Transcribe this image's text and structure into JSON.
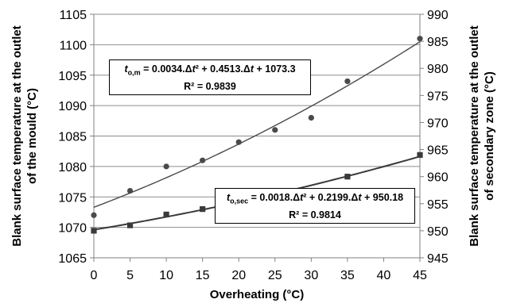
{
  "chart_data": {
    "type": "scatter",
    "xlabel": "Overheating (°C)",
    "ylabel_left": "Blank surface temperature at the outlet of the mould (°C)",
    "ylabel_left_lines": [
      "Blank surface temperature at the outlet",
      "of the mould (°C)"
    ],
    "ylabel_right": "Blank surface temperature at the outlet of secondary zone (°C)",
    "ylabel_right_lines": [
      "Blank surface temperature at the outlet",
      "of secondary zone (°C)"
    ],
    "xlim": [
      0,
      45
    ],
    "ylim_left": [
      1065,
      1105
    ],
    "ylim_right": [
      945,
      990
    ],
    "x_ticks": [
      "0",
      "5",
      "10",
      "15",
      "20",
      "25",
      "30",
      "35",
      "40",
      "45"
    ],
    "y_left_ticks": [
      "1065",
      "1070",
      "1075",
      "1080",
      "1085",
      "1090",
      "1095",
      "1100",
      "1105"
    ],
    "y_right_ticks": [
      "945",
      "950",
      "955",
      "960",
      "965",
      "970",
      "975",
      "980",
      "985",
      "990"
    ],
    "grid": "horizontal",
    "series": [
      {
        "axis": "left",
        "marker": "circle",
        "x": [
          0,
          5,
          10,
          15,
          20,
          25,
          30,
          35,
          45
        ],
        "y": [
          1072,
          1076,
          1080,
          1081,
          1084,
          1086,
          1088,
          1094,
          1101
        ],
        "trend": {
          "a": 0.0034,
          "b": 0.4513,
          "c": 1073.3
        },
        "equation": {
          "lhs": "t",
          "lhs_sub": "o,m",
          "rhs_parts": [
            " = 0.0034.Δ",
            "t",
            "² + 0.4513.Δ",
            "t",
            " + 1073.3"
          ],
          "r2": "R² = 0.9839"
        }
      },
      {
        "axis": "right",
        "marker": "square",
        "x": [
          0,
          5,
          10,
          15,
          20,
          25,
          30,
          35,
          45
        ],
        "y": [
          950,
          951,
          953,
          954,
          955.5,
          956.5,
          956.5,
          960,
          964
        ],
        "trend": {
          "a": 0.0018,
          "b": 0.2199,
          "c": 950.18
        },
        "equation": {
          "lhs": "t",
          "lhs_sub": "o,sec",
          "rhs_parts": [
            " = 0.0018.Δ",
            "t",
            "² + 0.2199.Δ",
            "t",
            " + 950.18"
          ],
          "r2": "R² = 0.9814"
        }
      }
    ],
    "colors": {
      "series1": "#4a4a4a",
      "series2": "#3a3a3a",
      "grid": "#8c8c8c",
      "axis": "#808080"
    }
  }
}
